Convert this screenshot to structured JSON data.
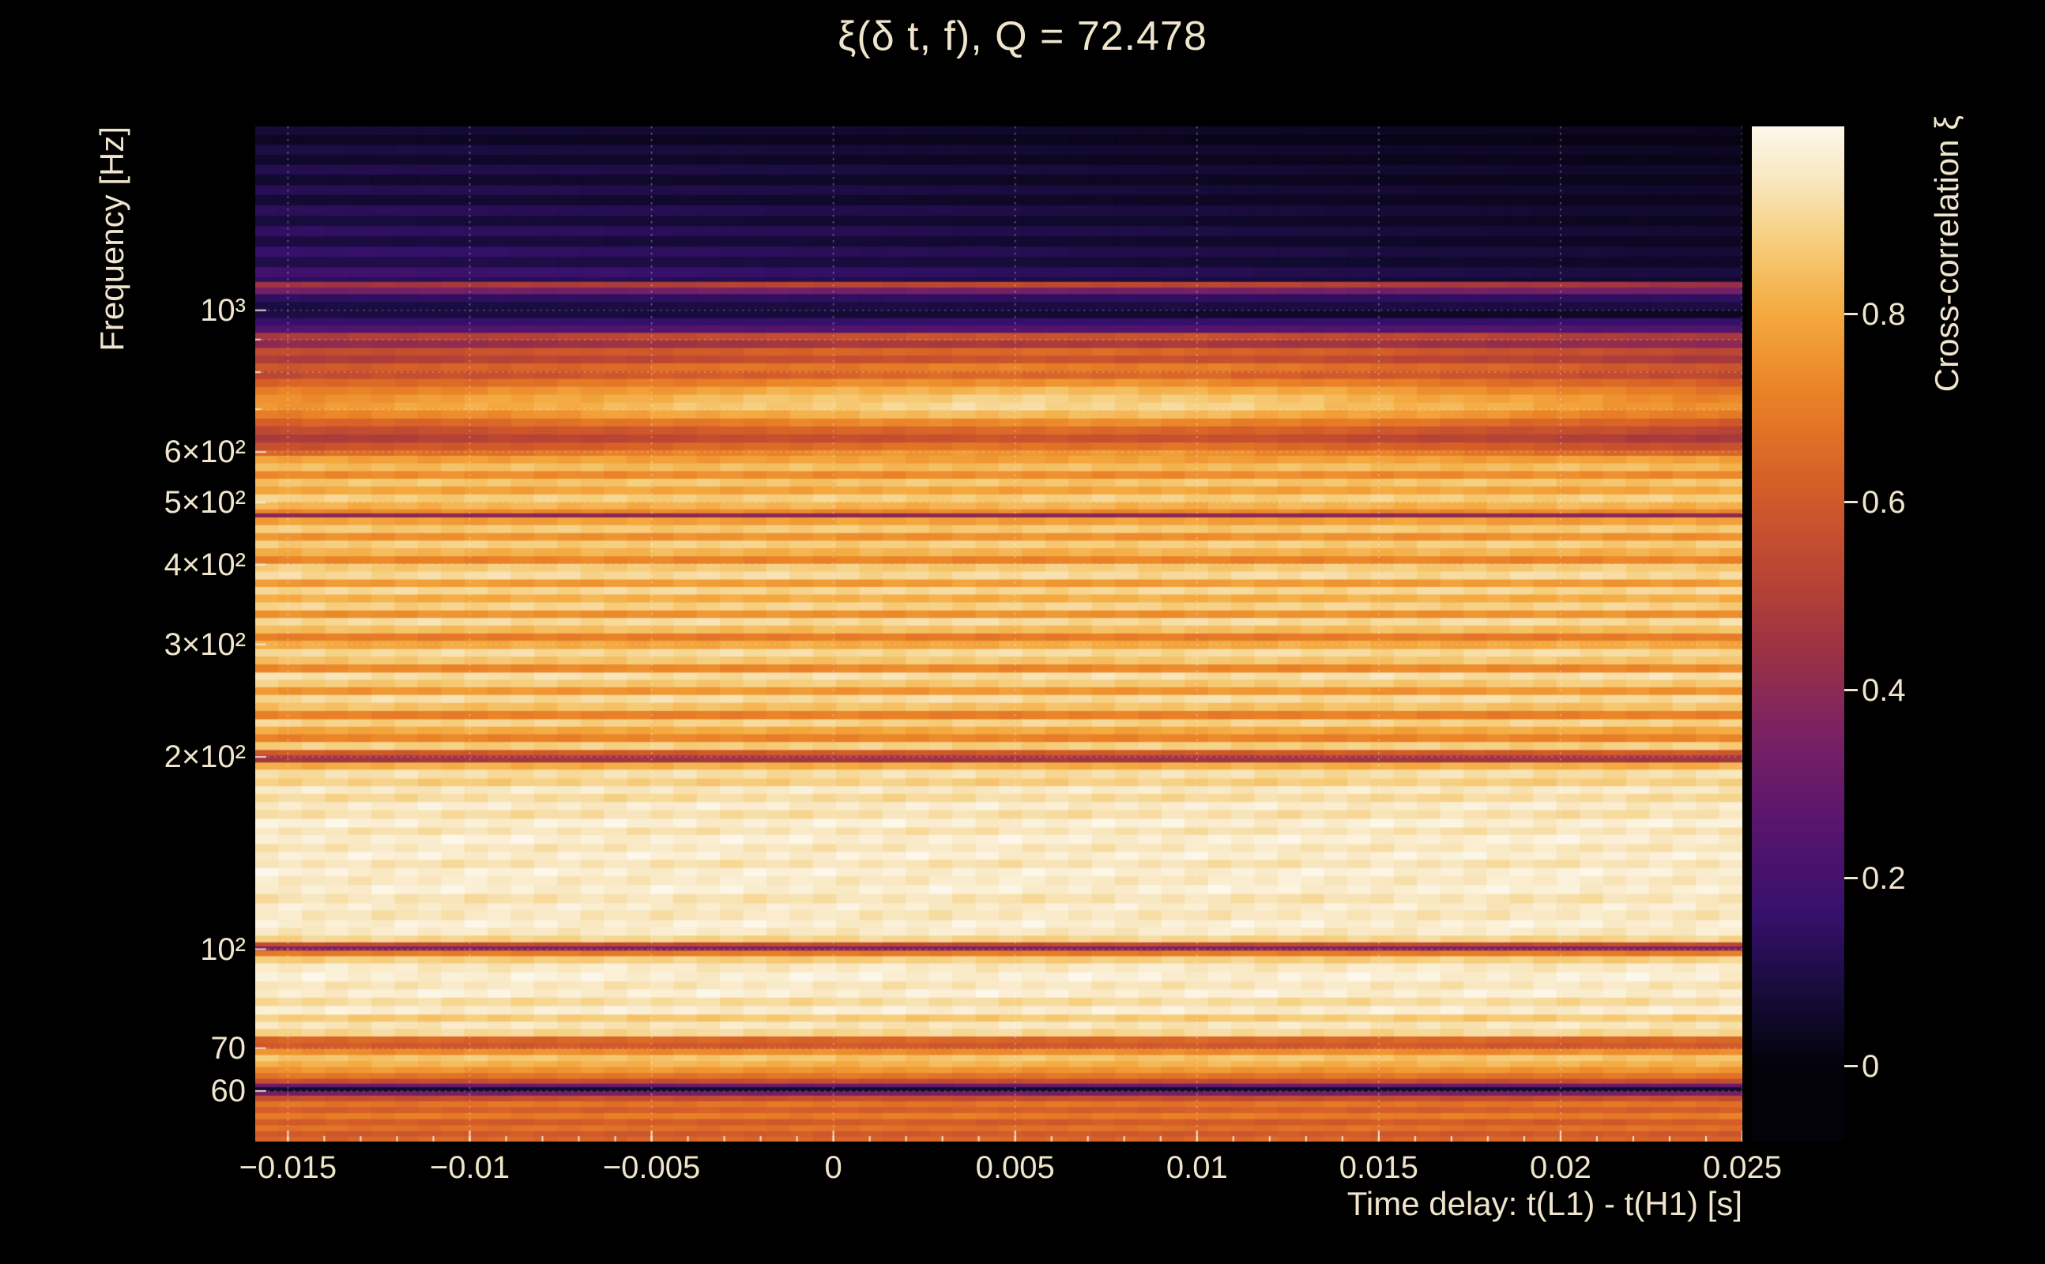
{
  "chart_data": {
    "type": "heatmap",
    "title": "ξ(δ t, f), Q = 72.478",
    "xlabel": "Time delay: t(L1) - t(H1) [s]",
    "ylabel": "Frequency [Hz]",
    "colorbar_label": "Cross-correlation ξ",
    "x_range": [
      -0.0159,
      0.025
    ],
    "x_ticks": [
      -0.015,
      -0.01,
      -0.005,
      0,
      0.005,
      0.01,
      0.015,
      0.02,
      0.025
    ],
    "x_tick_labels": [
      "−0.015",
      "−0.01",
      "−0.005",
      "0",
      "0.005",
      "0.01",
      "0.015",
      "0.02",
      "0.025"
    ],
    "x_minor_step": 0.001,
    "y_scale": "log",
    "y_range": [
      50,
      1940
    ],
    "y_ticks": [
      1000,
      600,
      500,
      400,
      300,
      200,
      100,
      70,
      60
    ],
    "y_tick_labels": [
      "10³",
      "6×10²",
      "5×10²",
      "4×10²",
      "3×10²",
      "2×10²",
      "10²",
      "70",
      "60"
    ],
    "y_minor_ticks": [
      900,
      800,
      700,
      90,
      80
    ],
    "y_gridlines": [
      1000,
      900,
      800,
      700,
      600,
      500,
      400,
      300,
      200,
      100,
      90,
      80,
      70,
      60
    ],
    "grid": true,
    "colorbar_range": [
      -0.08,
      1.0
    ],
    "colorbar_ticks": [
      0,
      0.2,
      0.4,
      0.6,
      0.8
    ],
    "colorbar_tick_labels": [
      "0",
      "0.2",
      "0.4",
      "0.6",
      "0.8"
    ],
    "colors": {
      "background": "#000000",
      "text": "#efe5cc"
    },
    "colormap": [
      [
        0.0,
        "#03020a"
      ],
      [
        0.08,
        "#170c3b"
      ],
      [
        0.16,
        "#36106b"
      ],
      [
        0.26,
        "#59156e"
      ],
      [
        0.36,
        "#7c2262"
      ],
      [
        0.44,
        "#9a3145"
      ],
      [
        0.52,
        "#b84434"
      ],
      [
        0.62,
        "#d55e28"
      ],
      [
        0.72,
        "#ea8327"
      ],
      [
        0.8,
        "#f4a93f"
      ],
      [
        0.88,
        "#f6cf7e"
      ],
      [
        0.94,
        "#f8e6bd"
      ],
      [
        1.0,
        "#fdf8ec"
      ]
    ],
    "x_profiles": [
      [
        1,
        1,
        1,
        1,
        1,
        1,
        1,
        1,
        1
      ],
      [
        0.86,
        0.9,
        0.95,
        1.0,
        1.03,
        1.02,
        0.96,
        0.9,
        0.84
      ],
      [
        1.35,
        1.28,
        1.18,
        1.08,
        0.98,
        0.86,
        0.75,
        0.66,
        0.6
      ]
    ],
    "rows_format": [
      "freq_hi_hz",
      "correlation",
      "x_profile_index"
    ],
    "rows": [
      [
        1940,
        0.055,
        2
      ],
      [
        1880,
        0.03,
        2
      ],
      [
        1815,
        0.07,
        2
      ],
      [
        1750,
        0.04,
        2
      ],
      [
        1690,
        0.085,
        2
      ],
      [
        1630,
        0.045,
        2
      ],
      [
        1570,
        0.09,
        2
      ],
      [
        1515,
        0.05,
        2
      ],
      [
        1460,
        0.1,
        2
      ],
      [
        1405,
        0.06,
        2
      ],
      [
        1355,
        0.11,
        2
      ],
      [
        1305,
        0.065,
        2
      ],
      [
        1258,
        0.12,
        2
      ],
      [
        1212,
        0.08,
        2
      ],
      [
        1168,
        0.14,
        2
      ],
      [
        1126,
        0.1,
        2
      ],
      [
        1108,
        0.52,
        1
      ],
      [
        1085,
        0.34,
        0
      ],
      [
        1060,
        0.14,
        0
      ],
      [
        1030,
        0.09,
        0
      ],
      [
        1000,
        0.07,
        2
      ],
      [
        972,
        0.16,
        0
      ],
      [
        947,
        0.24,
        0
      ],
      [
        922,
        0.56,
        1
      ],
      [
        897,
        0.47,
        1
      ],
      [
        873,
        0.63,
        1
      ],
      [
        849,
        0.56,
        1
      ],
      [
        826,
        0.69,
        1
      ],
      [
        803,
        0.63,
        1
      ],
      [
        781,
        0.73,
        1
      ],
      [
        759,
        0.81,
        1
      ],
      [
        738,
        0.86,
        1
      ],
      [
        717,
        0.88,
        1
      ],
      [
        697,
        0.82,
        1
      ],
      [
        677,
        0.72,
        1
      ],
      [
        658,
        0.63,
        1
      ],
      [
        639,
        0.56,
        1
      ],
      [
        621,
        0.66,
        1
      ],
      [
        604,
        0.74,
        1
      ],
      [
        592,
        0.78,
        0
      ],
      [
        576,
        0.84,
        0
      ],
      [
        560,
        0.74,
        0
      ],
      [
        545,
        0.86,
        0
      ],
      [
        530,
        0.79,
        0
      ],
      [
        515,
        0.88,
        0
      ],
      [
        501,
        0.82,
        0
      ],
      [
        488,
        0.73,
        0
      ],
      [
        481,
        0.4,
        0
      ],
      [
        474,
        0.78,
        0
      ],
      [
        461,
        0.87,
        0
      ],
      [
        448,
        0.75,
        0
      ],
      [
        436,
        0.88,
        0
      ],
      [
        424,
        0.82,
        0
      ],
      [
        412,
        0.72,
        0
      ],
      [
        401,
        0.87,
        0
      ],
      [
        390,
        0.91,
        0
      ],
      [
        379,
        0.77,
        0
      ],
      [
        369,
        0.9,
        0
      ],
      [
        359,
        0.81,
        0
      ],
      [
        349,
        0.89,
        0
      ],
      [
        339,
        0.75,
        0
      ],
      [
        330,
        0.91,
        0
      ],
      [
        321,
        0.84,
        0
      ],
      [
        312,
        0.7,
        0
      ],
      [
        304,
        0.8,
        0
      ],
      [
        295,
        0.91,
        0
      ],
      [
        287,
        0.86,
        0
      ],
      [
        279,
        0.73,
        0
      ],
      [
        271,
        0.92,
        0
      ],
      [
        264,
        0.87,
        0
      ],
      [
        257,
        0.76,
        0
      ],
      [
        250,
        0.91,
        0
      ],
      [
        243,
        0.85,
        0
      ],
      [
        236,
        0.71,
        0
      ],
      [
        229,
        0.89,
        0
      ],
      [
        223,
        0.8,
        0
      ],
      [
        217,
        0.72,
        0
      ],
      [
        211,
        0.88,
        0
      ],
      [
        205,
        0.6,
        0
      ],
      [
        201,
        0.46,
        0
      ],
      [
        196,
        0.81,
        0
      ],
      [
        191,
        0.92,
        0
      ],
      [
        185,
        0.88,
        0
      ],
      [
        180,
        0.95,
        0
      ],
      [
        175,
        0.91,
        0
      ],
      [
        170,
        0.96,
        0
      ],
      [
        165,
        0.92,
        0
      ],
      [
        160,
        0.97,
        0
      ],
      [
        155,
        0.93,
        0
      ],
      [
        151,
        0.97,
        0
      ],
      [
        146,
        0.94,
        0
      ],
      [
        142,
        0.97,
        0
      ],
      [
        138,
        0.93,
        0
      ],
      [
        134,
        0.97,
        0
      ],
      [
        130,
        0.95,
        0
      ],
      [
        126,
        0.97,
        0
      ],
      [
        122,
        0.93,
        0
      ],
      [
        118,
        0.96,
        0
      ],
      [
        115,
        0.94,
        0
      ],
      [
        111,
        0.97,
        0
      ],
      [
        108,
        0.95,
        0
      ],
      [
        105,
        0.89,
        0
      ],
      [
        102.5,
        0.55,
        0
      ],
      [
        101,
        0.36,
        0
      ],
      [
        99.5,
        0.7,
        0
      ],
      [
        97.5,
        0.88,
        0
      ],
      [
        95,
        0.95,
        0
      ],
      [
        92,
        0.97,
        0
      ],
      [
        89,
        0.94,
        0
      ],
      [
        86.5,
        0.97,
        0
      ],
      [
        84,
        0.91,
        0
      ],
      [
        81.5,
        0.96,
        0
      ],
      [
        79,
        0.87,
        0
      ],
      [
        77,
        0.94,
        0
      ],
      [
        75,
        0.9,
        0
      ],
      [
        73,
        0.64,
        0
      ],
      [
        71.3,
        0.6,
        0
      ],
      [
        69.8,
        0.74,
        0
      ],
      [
        68.3,
        0.86,
        0
      ],
      [
        66.8,
        0.82,
        0
      ],
      [
        65.4,
        0.76,
        0
      ],
      [
        64,
        0.68,
        0
      ],
      [
        62.7,
        0.56,
        0
      ],
      [
        61.6,
        0.3,
        0
      ],
      [
        60.8,
        0.06,
        0
      ],
      [
        59.9,
        0.34,
        0
      ],
      [
        59,
        0.56,
        0
      ],
      [
        57.8,
        0.68,
        0
      ],
      [
        56.6,
        0.62,
        0
      ],
      [
        55.4,
        0.7,
        0
      ],
      [
        54.2,
        0.61,
        0
      ],
      [
        53,
        0.67,
        0
      ],
      [
        51.9,
        0.6,
        0
      ],
      [
        50.9,
        0.64,
        0
      ]
    ]
  }
}
